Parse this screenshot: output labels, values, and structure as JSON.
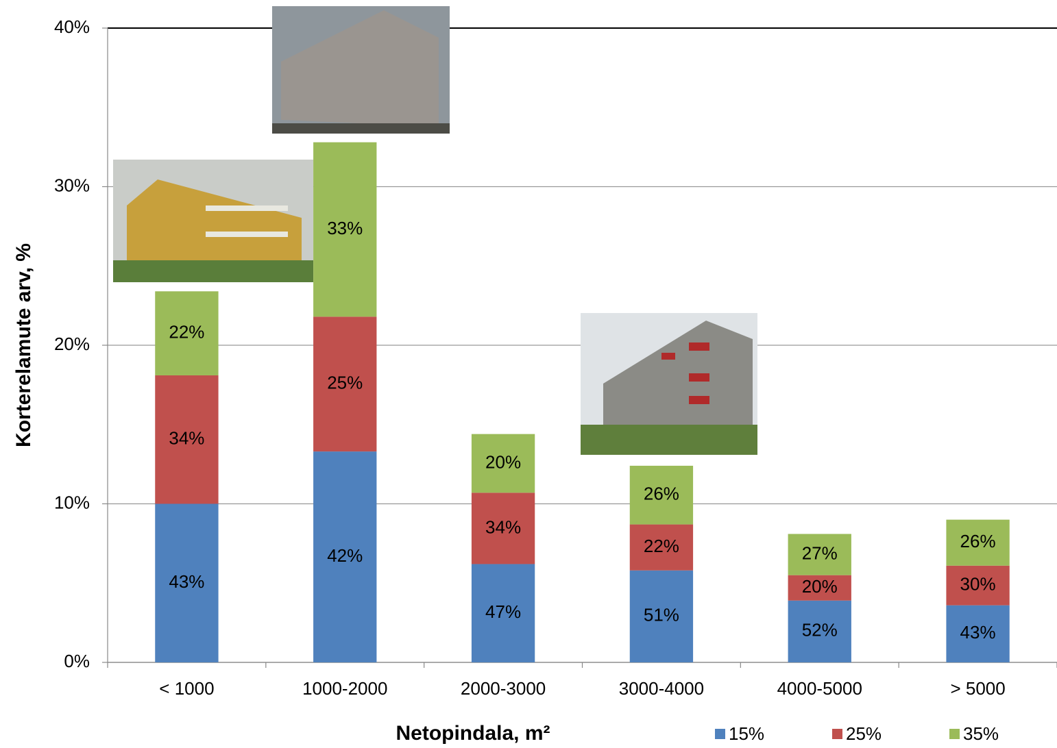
{
  "chart_data": {
    "type": "stacked-bar",
    "x_label": "Netopindala, m²",
    "y_label": "Korterelamute arv, %",
    "categories": [
      "< 1000",
      "1000-2000",
      "2000-3000",
      "3000-4000",
      "4000-5000",
      "> 5000"
    ],
    "series": [
      {
        "name": "15%",
        "color": "#4f81bd",
        "values": [
          10.0,
          13.3,
          6.2,
          5.8,
          3.9,
          3.6
        ],
        "labels": [
          "43%",
          "42%",
          "47%",
          "51%",
          "52%",
          "43%"
        ]
      },
      {
        "name": "25%",
        "color": "#c0504d",
        "values": [
          8.1,
          8.5,
          4.5,
          2.9,
          1.6,
          2.5
        ],
        "labels": [
          "34%",
          "25%",
          "34%",
          "22%",
          "20%",
          "30%"
        ]
      },
      {
        "name": "35%",
        "color": "#9bbb59",
        "values": [
          5.3,
          11.0,
          3.7,
          3.7,
          2.6,
          2.9
        ],
        "labels": [
          "22%",
          "33%",
          "20%",
          "26%",
          "27%",
          "26%"
        ]
      }
    ],
    "ylim": [
      0,
      40
    ],
    "yticks": [
      {
        "value": 0,
        "label": "0%"
      },
      {
        "value": 10,
        "label": "10%"
      },
      {
        "value": 20,
        "label": "20%"
      },
      {
        "value": 30,
        "label": "30%"
      },
      {
        "value": 40,
        "label": "40%"
      }
    ],
    "grid": true,
    "legend": "bottom-right"
  }
}
